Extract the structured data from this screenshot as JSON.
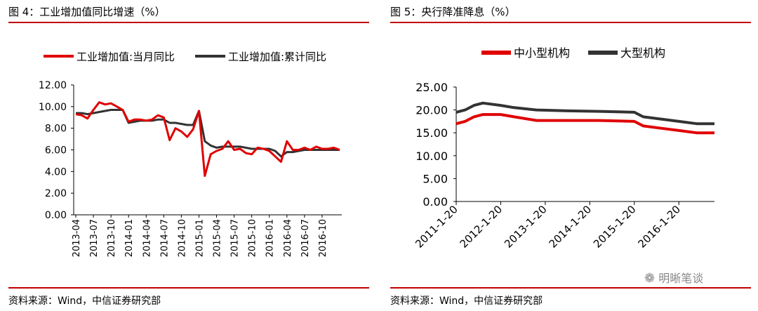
{
  "page": {
    "left_title": "图 4：工业增加值同比增速（%）",
    "right_title": "图 5：央行降准降息（%）",
    "left_source": "资料来源：Wind，中信证券研究部",
    "right_source": "资料来源：Wind，中信证券研究部",
    "watermark": "明晰笔谈",
    "accent_color": "#c00000"
  },
  "chart_data": [
    {
      "type": "line",
      "title": "",
      "xlabel": "",
      "ylabel": "",
      "ylim": [
        0,
        12
      ],
      "yticks": [
        "0.00",
        "2.00",
        "4.00",
        "6.00",
        "8.00",
        "10.00",
        "12.00"
      ],
      "xtick_labels": [
        "2013-04",
        "2013-07",
        "2013-10",
        "2014-01",
        "2014-04",
        "2014-07",
        "2014-10",
        "2015-01",
        "2015-04",
        "2015-07",
        "2015-10",
        "2016-01",
        "2016-04",
        "2016-07",
        "2016-10"
      ],
      "legend_position": "top",
      "colors": [
        "#e00000",
        "#333333"
      ],
      "series": [
        {
          "name": "工业增加值:当月同比",
          "values": [
            9.3,
            9.2,
            8.9,
            9.7,
            10.4,
            10.2,
            10.3,
            10.0,
            9.7,
            8.6,
            8.8,
            8.8,
            8.7,
            8.8,
            9.2,
            9.0,
            6.9,
            8.0,
            7.7,
            7.2,
            7.9,
            9.6,
            3.6,
            5.6,
            5.9,
            6.1,
            6.8,
            6.0,
            6.1,
            5.7,
            5.6,
            6.2,
            6.1,
            5.9,
            5.4,
            4.9,
            6.8,
            6.0,
            6.0,
            6.2,
            6.0,
            6.3,
            6.1,
            6.1,
            6.2,
            6.0
          ]
        },
        {
          "name": "工业增加值:累计同比",
          "values": [
            9.4,
            9.4,
            9.3,
            9.4,
            9.5,
            9.6,
            9.7,
            9.7,
            9.7,
            8.5,
            8.6,
            8.7,
            8.7,
            8.7,
            8.8,
            8.8,
            8.5,
            8.5,
            8.4,
            8.3,
            8.3,
            9.6,
            6.8,
            6.4,
            6.2,
            6.3,
            6.3,
            6.3,
            6.3,
            6.2,
            6.1,
            6.1,
            6.1,
            6.1,
            5.9,
            5.4,
            5.8,
            5.8,
            5.9,
            6.0,
            6.0,
            6.0,
            6.0,
            6.0,
            6.0,
            6.0
          ]
        }
      ]
    },
    {
      "type": "line",
      "title": "",
      "xlabel": "",
      "ylabel": "",
      "ylim": [
        0,
        25
      ],
      "yticks": [
        "0.00",
        "5.00",
        "10.00",
        "15.00",
        "20.00",
        "25.00"
      ],
      "xtick_labels": [
        "2011-1-20",
        "2012-1-20",
        "2013-1-20",
        "2014-1-20",
        "2015-1-20",
        "2016-1-20"
      ],
      "legend_position": "top",
      "colors": [
        "#e00000",
        "#333333"
      ],
      "series": [
        {
          "name": "中小型机构",
          "x": [
            0,
            0.2,
            0.4,
            0.6,
            1.0,
            1.3,
            1.8,
            2.5,
            3.2,
            4.0,
            4.2,
            4.6,
            5.0,
            5.4,
            5.8
          ],
          "y": [
            17.0,
            17.5,
            18.5,
            19.0,
            19.0,
            18.5,
            17.7,
            17.7,
            17.7,
            17.5,
            16.5,
            16.0,
            15.5,
            15.0,
            15.0
          ]
        },
        {
          "name": "大型机构",
          "x": [
            0,
            0.2,
            0.4,
            0.6,
            1.0,
            1.3,
            1.8,
            2.5,
            3.2,
            4.0,
            4.2,
            4.6,
            5.0,
            5.4,
            5.8
          ],
          "y": [
            19.5,
            20.0,
            21.0,
            21.5,
            21.0,
            20.5,
            20.0,
            19.8,
            19.7,
            19.5,
            18.5,
            18.0,
            17.5,
            17.0,
            17.0
          ]
        }
      ]
    }
  ]
}
